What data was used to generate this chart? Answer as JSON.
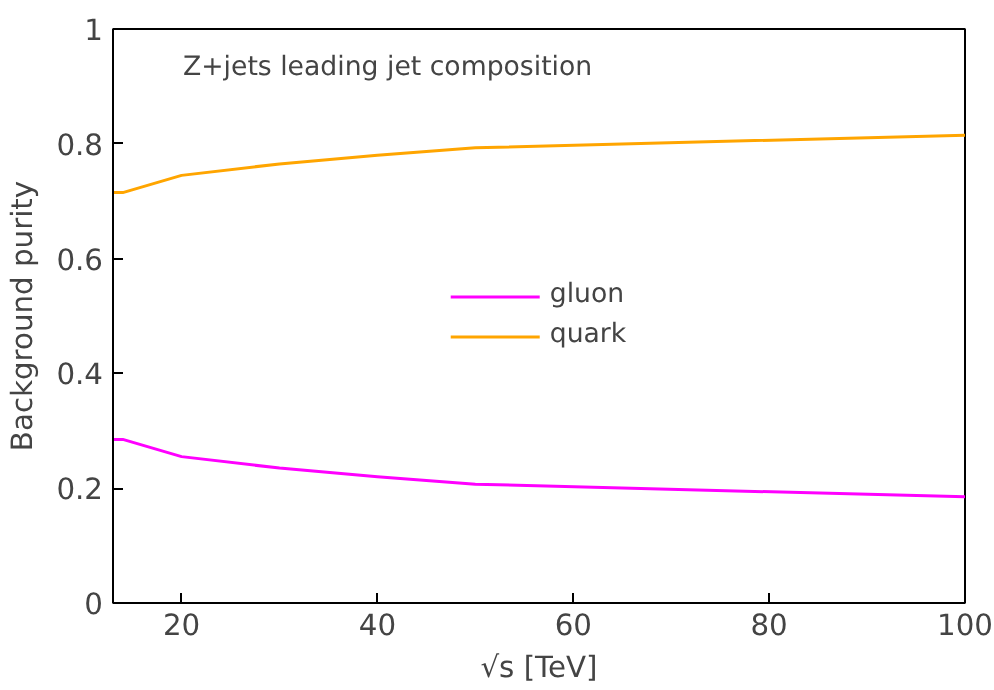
{
  "chart_data": {
    "type": "line",
    "xlabel": "√s [TeV]",
    "ylabel": "Background purity",
    "annotations": [
      "Z+jets leading jet composition"
    ],
    "x": [
      13,
      14,
      20,
      30,
      40,
      50,
      100
    ],
    "series": [
      {
        "name": "gluon",
        "color": "#ff00ff",
        "values": [
          0.285,
          0.285,
          0.255,
          0.235,
          0.22,
          0.207,
          0.185
        ]
      },
      {
        "name": "quark",
        "color": "#ffa500",
        "values": [
          0.715,
          0.715,
          0.745,
          0.765,
          0.78,
          0.793,
          0.815
        ]
      }
    ],
    "xlim": [
      13,
      100
    ],
    "ylim": [
      0,
      1
    ],
    "xticks": [
      20,
      40,
      60,
      80,
      100
    ],
    "yticks": [
      0,
      0.2,
      0.4,
      0.6,
      0.8,
      1
    ],
    "grid": false,
    "legend": "center",
    "marker": "none",
    "line_style": "solid"
  }
}
